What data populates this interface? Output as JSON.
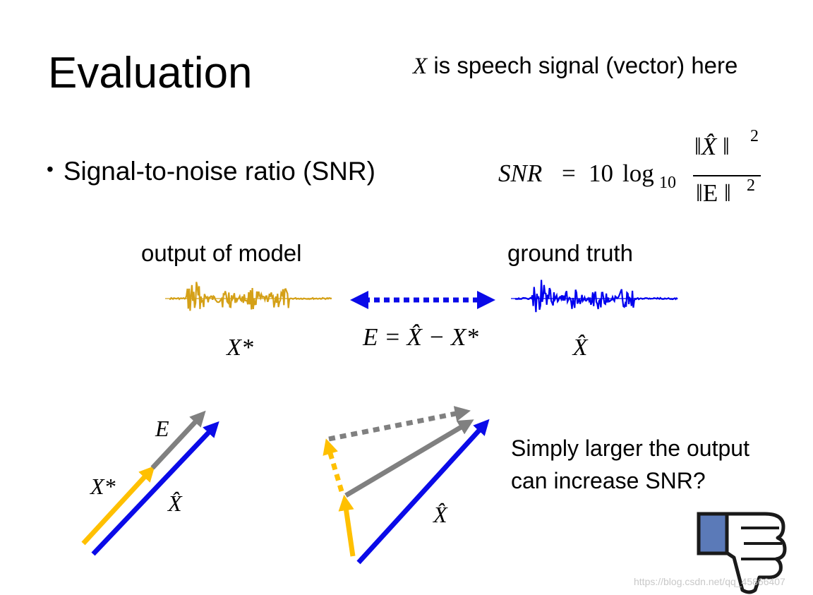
{
  "slide": {
    "title": "Evaluation",
    "note": {
      "var": "X",
      "text": " is speech signal (vector) here"
    },
    "bullet": "Signal-to-noise ratio (SNR)",
    "formula": {
      "lhs": "SNR",
      "eq": "=",
      "coef": "10",
      "log": "log",
      "log_base": "10",
      "num": "‖X̂ ‖",
      "num_exp": "2",
      "den": "‖E ‖",
      "den_exp": "2"
    },
    "label_output": "output of model",
    "label_ground_truth": "ground truth",
    "var_output": "X*",
    "var_truth": "X̂",
    "error_equation": "E = X̂ − X*",
    "vec_error": "E",
    "vec_output": "X*",
    "vec_truth_left": "X̂",
    "vec_truth_right": "X̂",
    "question": [
      "Simply larger the output",
      "can increase SNR?"
    ],
    "watermark": "https://blog.csdn.net/qq_45866407"
  },
  "icons": [
    "thumbs-down-icon"
  ],
  "colors": {
    "output_waveform": "#D4A017",
    "truth_waveform": "#0000EE",
    "arrow_blue": "#0A0AE8",
    "arrow_yellow": "#FFC000",
    "arrow_gray": "#808080",
    "thumb_fill": "#5B7AB8"
  }
}
